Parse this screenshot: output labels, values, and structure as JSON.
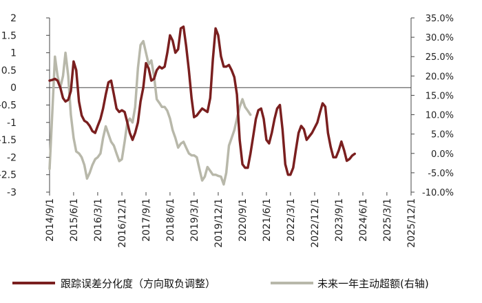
{
  "chart_data": {
    "type": "line",
    "title": "",
    "xlabel": "",
    "ylabel": "",
    "x_tick_labels": [
      "2014/9/1",
      "2015/6/1",
      "2016/3/1",
      "2016/12/1",
      "2017/9/1",
      "2018/6/1",
      "2019/3/1",
      "2019/12/1",
      "2020/9/1",
      "2021/6/1",
      "2022/3/1",
      "2022/12/1",
      "2023/9/1",
      "2024/6/1",
      "2025/3/1",
      "2025/12/1"
    ],
    "y_left": {
      "min": -3,
      "max": 2,
      "ticks": [
        "2",
        "1.5",
        "1",
        "0.5",
        "0",
        "-0.5",
        "-1",
        "-1.5",
        "-2",
        "-2.5",
        "-3"
      ]
    },
    "y_right": {
      "min": -10,
      "max": 35,
      "ticks": [
        "35.0%",
        "30.0%",
        "25.0%",
        "20.0%",
        "15.0%",
        "10.0%",
        "5.0%",
        "0.0%",
        "-5.0%",
        "-10.0%"
      ]
    },
    "legend_position": "bottom",
    "series": [
      {
        "name": "跟踪误差分化度（方向取负调整）",
        "axis": "left",
        "color": "#7a1f1f",
        "points": [
          [
            "2014/9/1",
            0.2
          ],
          [
            "2014/10/1",
            0.22
          ],
          [
            "2014/11/1",
            0.25
          ],
          [
            "2014/12/1",
            0.2
          ],
          [
            "2015/1/1",
            0.0
          ],
          [
            "2015/2/1",
            -0.3
          ],
          [
            "2015/3/1",
            -0.4
          ],
          [
            "2015/4/1",
            -0.35
          ],
          [
            "2015/5/1",
            -0.1
          ],
          [
            "2015/6/1",
            0.75
          ],
          [
            "2015/7/1",
            0.5
          ],
          [
            "2015/8/1",
            -0.4
          ],
          [
            "2015/9/1",
            -0.8
          ],
          [
            "2015/10/1",
            -0.95
          ],
          [
            "2015/11/1",
            -1.0
          ],
          [
            "2015/12/1",
            -1.1
          ],
          [
            "2016/1/1",
            -1.25
          ],
          [
            "2016/2/1",
            -1.3
          ],
          [
            "2016/3/1",
            -1.1
          ],
          [
            "2016/4/1",
            -0.9
          ],
          [
            "2016/5/1",
            -0.6
          ],
          [
            "2016/6/1",
            -0.2
          ],
          [
            "2016/7/1",
            0.15
          ],
          [
            "2016/8/1",
            0.2
          ],
          [
            "2016/9/1",
            -0.2
          ],
          [
            "2016/10/1",
            -0.6
          ],
          [
            "2016/11/1",
            -0.7
          ],
          [
            "2016/12/1",
            -0.65
          ],
          [
            "2017/1/1",
            -0.7
          ],
          [
            "2017/2/1",
            -1.0
          ],
          [
            "2017/3/1",
            -1.3
          ],
          [
            "2017/4/1",
            -1.5
          ],
          [
            "2017/5/1",
            -1.3
          ],
          [
            "2017/6/1",
            -1.0
          ],
          [
            "2017/7/1",
            -0.4
          ],
          [
            "2017/8/1",
            0.0
          ],
          [
            "2017/9/1",
            0.7
          ],
          [
            "2017/10/1",
            0.55
          ],
          [
            "2017/11/1",
            0.2
          ],
          [
            "2017/12/1",
            0.25
          ],
          [
            "2018/1/1",
            0.5
          ],
          [
            "2018/2/1",
            0.6
          ],
          [
            "2018/3/1",
            0.55
          ],
          [
            "2018/4/1",
            0.6
          ],
          [
            "2018/5/1",
            1.0
          ],
          [
            "2018/6/1",
            1.5
          ],
          [
            "2018/7/1",
            1.35
          ],
          [
            "2018/8/1",
            1.0
          ],
          [
            "2018/9/1",
            1.1
          ],
          [
            "2018/10/1",
            1.7
          ],
          [
            "2018/11/1",
            1.75
          ],
          [
            "2018/12/1",
            1.2
          ],
          [
            "2019/1/1",
            0.5
          ],
          [
            "2019/2/1",
            -0.3
          ],
          [
            "2019/3/1",
            -0.85
          ],
          [
            "2019/4/1",
            -0.8
          ],
          [
            "2019/5/1",
            -0.7
          ],
          [
            "2019/6/1",
            -0.6
          ],
          [
            "2019/7/1",
            -0.65
          ],
          [
            "2019/8/1",
            -0.7
          ],
          [
            "2019/9/1",
            -0.3
          ],
          [
            "2019/10/1",
            0.8
          ],
          [
            "2019/11/1",
            1.7
          ],
          [
            "2019/12/1",
            1.5
          ],
          [
            "2020/1/1",
            0.9
          ],
          [
            "2020/2/1",
            0.6
          ],
          [
            "2020/3/1",
            0.6
          ],
          [
            "2020/4/1",
            0.65
          ],
          [
            "2020/5/1",
            0.5
          ],
          [
            "2020/6/1",
            0.3
          ],
          [
            "2020/7/1",
            -0.2
          ],
          [
            "2020/8/1",
            -1.5
          ],
          [
            "2020/9/1",
            -2.2
          ],
          [
            "2020/10/1",
            -2.3
          ],
          [
            "2020/11/1",
            -2.3
          ],
          [
            "2020/12/1",
            -1.9
          ],
          [
            "2021/1/1",
            -1.4
          ],
          [
            "2021/2/1",
            -0.9
          ],
          [
            "2021/3/1",
            -0.65
          ],
          [
            "2021/4/1",
            -0.6
          ],
          [
            "2021/5/1",
            -0.9
          ],
          [
            "2021/6/1",
            -1.5
          ],
          [
            "2021/7/1",
            -1.6
          ],
          [
            "2021/8/1",
            -1.3
          ],
          [
            "2021/9/1",
            -0.9
          ],
          [
            "2021/10/1",
            -0.6
          ],
          [
            "2021/11/1",
            -0.5
          ],
          [
            "2021/12/1",
            -1.2
          ],
          [
            "2022/1/1",
            -2.2
          ],
          [
            "2022/2/1",
            -2.5
          ],
          [
            "2022/3/1",
            -2.5
          ],
          [
            "2022/4/1",
            -2.3
          ],
          [
            "2022/5/1",
            -1.8
          ],
          [
            "2022/6/1",
            -1.3
          ],
          [
            "2022/7/1",
            -1.1
          ],
          [
            "2022/8/1",
            -1.2
          ],
          [
            "2022/9/1",
            -1.5
          ],
          [
            "2022/10/1",
            -1.4
          ],
          [
            "2022/11/1",
            -1.3
          ],
          [
            "2022/12/1",
            -1.15
          ],
          [
            "2023/1/1",
            -1.0
          ],
          [
            "2023/2/1",
            -0.7
          ],
          [
            "2023/3/1",
            -0.45
          ],
          [
            "2023/4/1",
            -0.55
          ],
          [
            "2023/5/1",
            -1.3
          ],
          [
            "2023/6/1",
            -1.7
          ],
          [
            "2023/7/1",
            -2.0
          ],
          [
            "2023/8/1",
            -2.0
          ],
          [
            "2023/9/1",
            -1.8
          ],
          [
            "2023/10/1",
            -1.55
          ],
          [
            "2023/11/1",
            -1.8
          ],
          [
            "2023/12/1",
            -2.1
          ],
          [
            "2024/1/1",
            -2.05
          ],
          [
            "2024/2/1",
            -1.95
          ],
          [
            "2024/3/1",
            -1.9
          ]
        ]
      },
      {
        "name": "未来一年主动超额(右轴)",
        "axis": "right",
        "color": "#b8b8aa",
        "points": [
          [
            "2014/9/1",
            -4.0
          ],
          [
            "2014/10/1",
            10.0
          ],
          [
            "2014/11/1",
            25.0
          ],
          [
            "2014/12/1",
            20.0
          ],
          [
            "2015/1/1",
            17.0
          ],
          [
            "2015/2/1",
            20.0
          ],
          [
            "2015/3/1",
            26.0
          ],
          [
            "2015/4/1",
            20.0
          ],
          [
            "2015/5/1",
            10.0
          ],
          [
            "2015/6/1",
            4.0
          ],
          [
            "2015/7/1",
            0.5
          ],
          [
            "2015/8/1",
            0.0
          ],
          [
            "2015/9/1",
            -1.0
          ],
          [
            "2015/10/1",
            -3.0
          ],
          [
            "2015/11/1",
            -6.5
          ],
          [
            "2015/12/1",
            -5.0
          ],
          [
            "2016/1/1",
            -3.0
          ],
          [
            "2016/2/1",
            -1.5
          ],
          [
            "2016/3/1",
            -1.0
          ],
          [
            "2016/4/1",
            0.0
          ],
          [
            "2016/5/1",
            4.0
          ],
          [
            "2016/6/1",
            7.0
          ],
          [
            "2016/7/1",
            5.0
          ],
          [
            "2016/8/1",
            3.0
          ],
          [
            "2016/9/1",
            2.0
          ],
          [
            "2016/10/1",
            0.0
          ],
          [
            "2016/11/1",
            -2.0
          ],
          [
            "2016/12/1",
            -1.5
          ],
          [
            "2017/1/1",
            3.0
          ],
          [
            "2017/2/1",
            8.0
          ],
          [
            "2017/3/1",
            9.0
          ],
          [
            "2017/4/1",
            8.0
          ],
          [
            "2017/5/1",
            12.0
          ],
          [
            "2017/6/1",
            22.0
          ],
          [
            "2017/7/1",
            28.0
          ],
          [
            "2017/8/1",
            29.0
          ],
          [
            "2017/9/1",
            26.0
          ],
          [
            "2017/10/1",
            23.0
          ],
          [
            "2017/11/1",
            24.0
          ],
          [
            "2017/12/1",
            20.0
          ],
          [
            "2018/1/1",
            14.0
          ],
          [
            "2018/2/1",
            13.0
          ],
          [
            "2018/3/1",
            12.0
          ],
          [
            "2018/4/1",
            12.0
          ],
          [
            "2018/5/1",
            11.0
          ],
          [
            "2018/6/1",
            9.0
          ],
          [
            "2018/7/1",
            6.0
          ],
          [
            "2018/8/1",
            4.0
          ],
          [
            "2018/9/1",
            1.5
          ],
          [
            "2018/10/1",
            2.5
          ],
          [
            "2018/11/1",
            3.0
          ],
          [
            "2018/12/1",
            1.5
          ],
          [
            "2019/1/1",
            0.0
          ],
          [
            "2019/2/1",
            -0.5
          ],
          [
            "2019/3/1",
            -0.5
          ],
          [
            "2019/4/1",
            -1.0
          ],
          [
            "2019/5/1",
            -4.0
          ],
          [
            "2019/6/1",
            -7.0
          ],
          [
            "2019/7/1",
            -6.0
          ],
          [
            "2019/8/1",
            -3.5
          ],
          [
            "2019/9/1",
            -4.5
          ],
          [
            "2019/10/1",
            -5.5
          ],
          [
            "2019/11/1",
            -5.5
          ],
          [
            "2019/12/1",
            -5.8
          ],
          [
            "2020/1/1",
            -6.0
          ],
          [
            "2020/2/1",
            -8.0
          ],
          [
            "2020/3/1",
            -5.0
          ],
          [
            "2020/4/1",
            2.0
          ],
          [
            "2020/5/1",
            4.0
          ],
          [
            "2020/6/1",
            6.0
          ],
          [
            "2020/7/1",
            9.0
          ],
          [
            "2020/8/1",
            12.0
          ],
          [
            "2020/9/1",
            14.0
          ],
          [
            "2020/10/1",
            12.0
          ],
          [
            "2020/11/1",
            11.0
          ],
          [
            "2020/12/1",
            10.0
          ]
        ]
      }
    ]
  }
}
